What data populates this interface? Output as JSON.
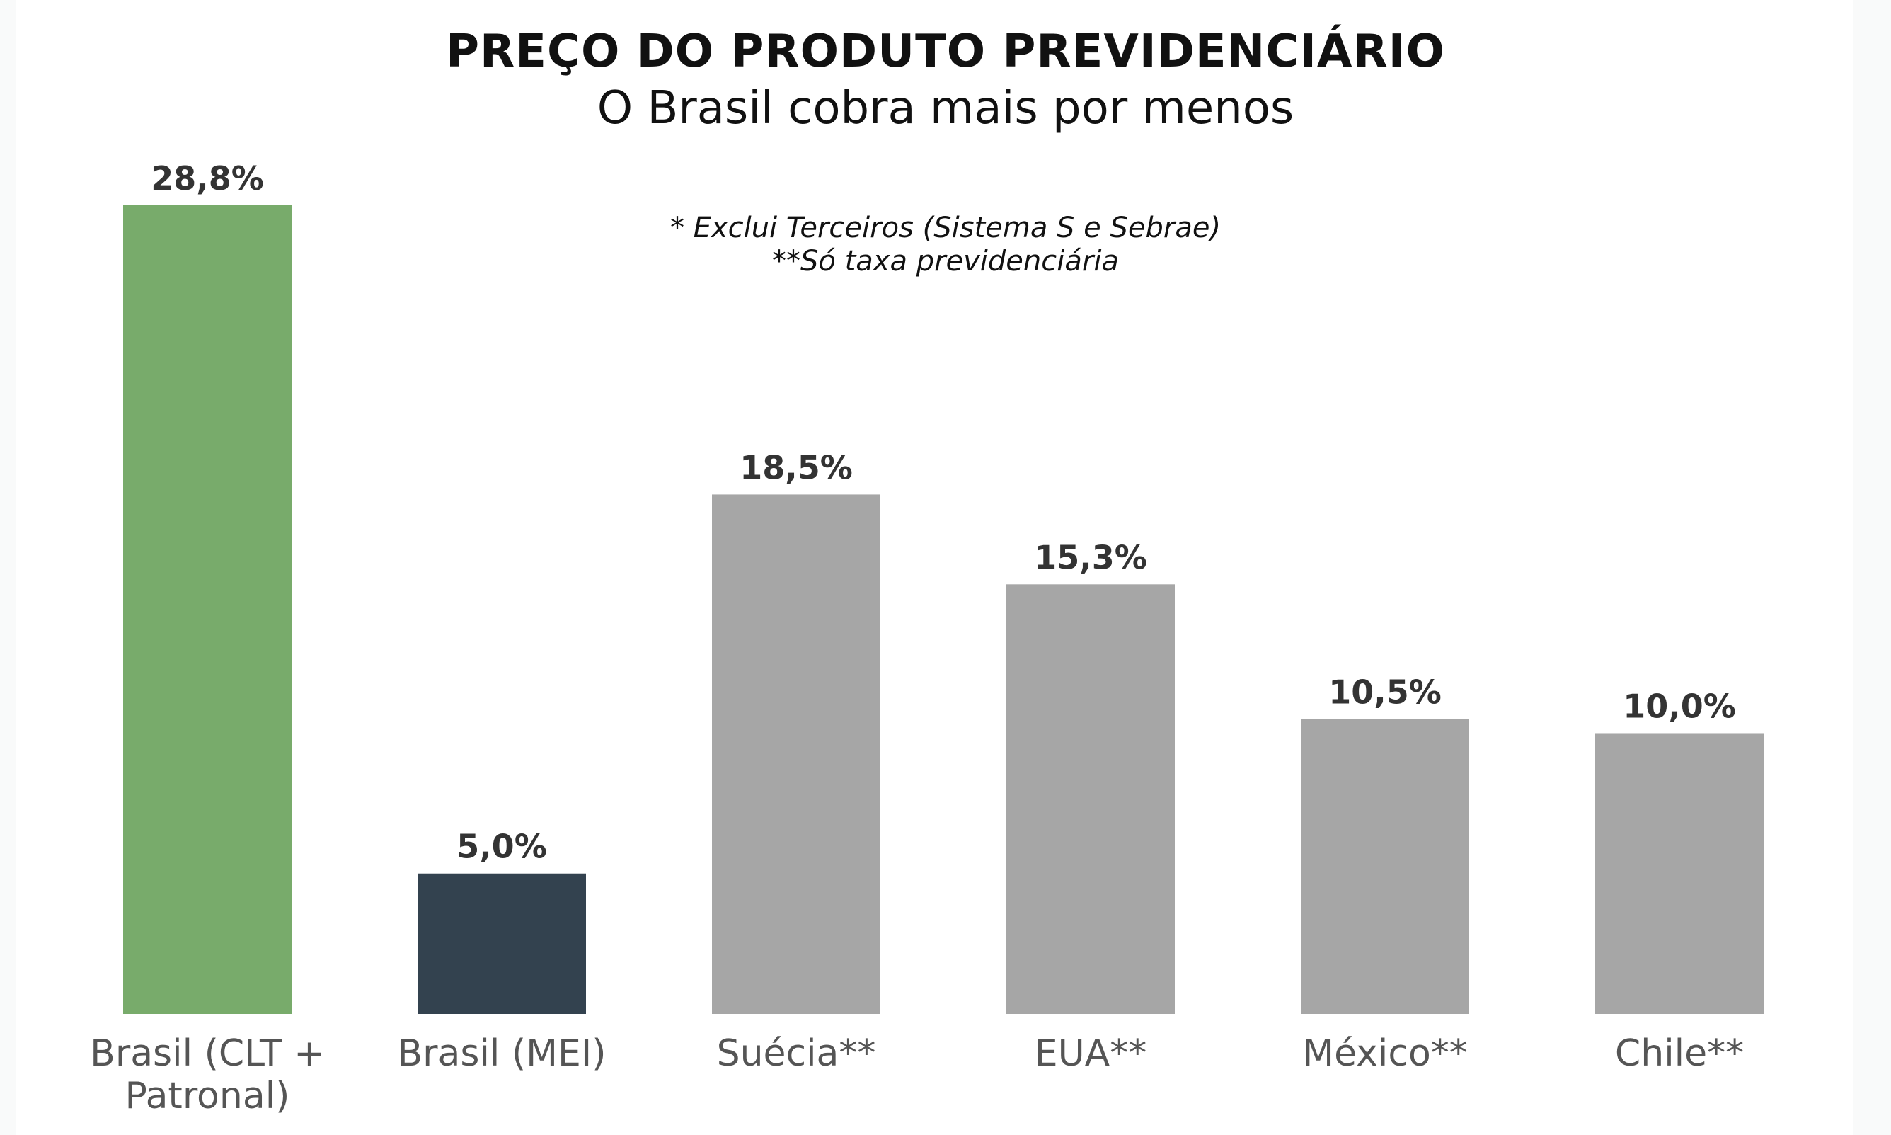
{
  "chart_data": {
    "type": "bar",
    "title": "PREÇO DO PRODUTO PREVIDENCIÁRIO",
    "subtitle": "O Brasil cobra mais por menos",
    "annotations": [
      "* Exclui Terceiros (Sistema S e Sebrae)",
      "**Só taxa previdenciária"
    ],
    "categories": [
      [
        "Brasil (CLT +",
        "Patronal)"
      ],
      [
        "Brasil (MEI)"
      ],
      [
        "Suécia**"
      ],
      [
        "EUA**"
      ],
      [
        "México**"
      ],
      [
        "Chile**"
      ]
    ],
    "values": [
      28.8,
      5.0,
      18.5,
      15.3,
      10.5,
      10.0
    ],
    "value_labels": [
      "28,8%",
      "5,0%",
      "18,5%",
      "15,3%",
      "10,5%",
      "10,0%"
    ],
    "bar_colors": [
      "#78ab6b",
      "#33424f",
      "#a6a6a6",
      "#a6a6a6",
      "#a6a6a6",
      "#a6a6a6"
    ],
    "xlabel": "",
    "ylabel": "",
    "ylim": [
      0,
      28.8
    ],
    "grid": false,
    "legend": "none"
  }
}
